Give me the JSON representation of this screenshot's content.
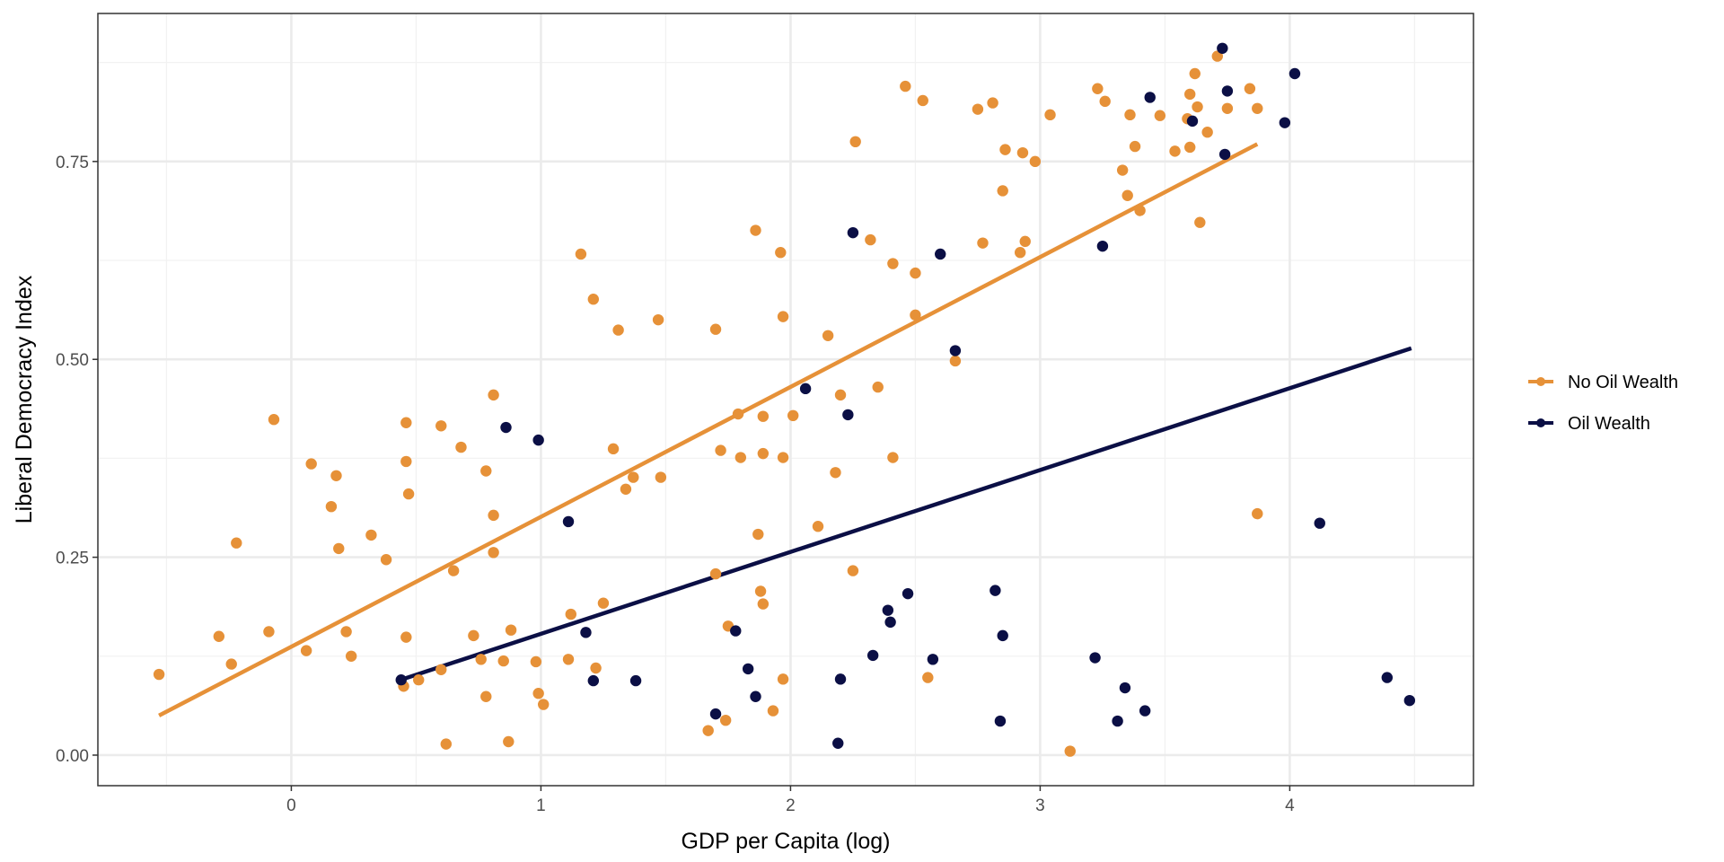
{
  "chart_data": {
    "type": "scatter",
    "title": "",
    "xlabel": "GDP per Capita (log)",
    "ylabel": "Liberal Democracy Index",
    "xlim": [
      -0.775,
      4.736
    ],
    "ylim": [
      -0.0386,
      0.937
    ],
    "x_ticks": [
      0,
      1,
      2,
      3,
      4
    ],
    "x_tick_labels": [
      "0",
      "1",
      "2",
      "3",
      "4"
    ],
    "x_minor_ticks": [
      -0.5,
      0.5,
      1.5,
      2.5,
      3.5,
      4.5
    ],
    "y_ticks": [
      0.0,
      0.25,
      0.5,
      0.75
    ],
    "y_tick_labels": [
      "0.00",
      "0.25",
      "0.50",
      "0.75"
    ],
    "y_minor_ticks": [
      0.125,
      0.375,
      0.625,
      0.875
    ],
    "grid": true,
    "legend_position": "right",
    "series": [
      {
        "name": "No Oil Wealth",
        "color": "#E69138",
        "fit_line": {
          "x": [
            -0.53,
            3.87
          ],
          "y": [
            0.05,
            0.772
          ]
        },
        "points": [
          [
            -0.53,
            0.102
          ],
          [
            -0.29,
            0.15
          ],
          [
            -0.24,
            0.115
          ],
          [
            -0.22,
            0.268
          ],
          [
            -0.09,
            0.156
          ],
          [
            -0.07,
            0.424
          ],
          [
            0.06,
            0.132
          ],
          [
            0.08,
            0.368
          ],
          [
            0.16,
            0.314
          ],
          [
            0.18,
            0.353
          ],
          [
            0.19,
            0.261
          ],
          [
            0.22,
            0.156
          ],
          [
            0.24,
            0.125
          ],
          [
            0.32,
            0.278
          ],
          [
            0.38,
            0.247
          ],
          [
            0.45,
            0.087
          ],
          [
            0.46,
            0.149
          ],
          [
            0.46,
            0.42
          ],
          [
            0.46,
            0.371
          ],
          [
            0.47,
            0.33
          ],
          [
            0.51,
            0.095
          ],
          [
            0.6,
            0.108
          ],
          [
            0.6,
            0.416
          ],
          [
            0.62,
            0.014
          ],
          [
            0.65,
            0.233
          ],
          [
            0.68,
            0.389
          ],
          [
            0.73,
            0.151
          ],
          [
            0.78,
            0.359
          ],
          [
            0.76,
            0.121
          ],
          [
            0.78,
            0.074
          ],
          [
            0.81,
            0.455
          ],
          [
            0.81,
            0.303
          ],
          [
            0.81,
            0.256
          ],
          [
            1.16,
            0.633
          ],
          [
            0.85,
            0.119
          ],
          [
            0.87,
            0.017
          ],
          [
            0.88,
            0.158
          ],
          [
            0.98,
            0.118
          ],
          [
            0.99,
            0.078
          ],
          [
            1.01,
            0.064
          ],
          [
            1.11,
            0.121
          ],
          [
            1.12,
            0.178
          ],
          [
            1.21,
            0.576
          ],
          [
            1.22,
            0.11
          ],
          [
            1.25,
            0.192
          ],
          [
            1.31,
            0.537
          ],
          [
            1.29,
            0.387
          ],
          [
            1.37,
            0.351
          ],
          [
            1.48,
            0.351
          ],
          [
            1.47,
            0.55
          ],
          [
            1.34,
            0.336
          ],
          [
            1.67,
            0.031
          ],
          [
            1.7,
            0.229
          ],
          [
            1.7,
            0.538
          ],
          [
            1.72,
            0.385
          ],
          [
            1.74,
            0.044
          ],
          [
            1.75,
            0.163
          ],
          [
            1.79,
            0.431
          ],
          [
            1.8,
            0.376
          ],
          [
            1.86,
            0.663
          ],
          [
            1.87,
            0.279
          ],
          [
            1.88,
            0.207
          ],
          [
            1.89,
            0.191
          ],
          [
            1.89,
            0.381
          ],
          [
            1.89,
            0.428
          ],
          [
            1.93,
            0.056
          ],
          [
            1.96,
            0.635
          ],
          [
            1.97,
            0.554
          ],
          [
            1.97,
            0.096
          ],
          [
            1.97,
            0.376
          ],
          [
            2.01,
            0.429
          ],
          [
            2.11,
            0.289
          ],
          [
            2.15,
            0.53
          ],
          [
            2.18,
            0.357
          ],
          [
            2.2,
            0.455
          ],
          [
            2.25,
            0.233
          ],
          [
            2.26,
            0.775
          ],
          [
            2.32,
            0.651
          ],
          [
            2.35,
            0.465
          ],
          [
            2.41,
            0.621
          ],
          [
            2.41,
            0.376
          ],
          [
            2.46,
            0.845
          ],
          [
            2.5,
            0.609
          ],
          [
            2.5,
            0.556
          ],
          [
            2.53,
            0.827
          ],
          [
            2.55,
            0.098
          ],
          [
            2.66,
            0.498
          ],
          [
            2.75,
            0.816
          ],
          [
            2.77,
            0.647
          ],
          [
            2.81,
            0.824
          ],
          [
            2.85,
            0.713
          ],
          [
            2.86,
            0.765
          ],
          [
            2.92,
            0.635
          ],
          [
            2.93,
            0.761
          ],
          [
            2.94,
            0.649
          ],
          [
            2.98,
            0.75
          ],
          [
            3.04,
            0.809
          ],
          [
            3.12,
            0.005
          ],
          [
            3.23,
            0.842
          ],
          [
            3.26,
            0.826
          ],
          [
            3.33,
            0.739
          ],
          [
            3.35,
            0.707
          ],
          [
            3.36,
            0.809
          ],
          [
            3.38,
            0.769
          ],
          [
            3.4,
            0.688
          ],
          [
            3.48,
            0.808
          ],
          [
            3.54,
            0.763
          ],
          [
            3.59,
            0.804
          ],
          [
            3.6,
            0.768
          ],
          [
            3.6,
            0.835
          ],
          [
            3.62,
            0.861
          ],
          [
            3.63,
            0.819
          ],
          [
            3.64,
            0.673
          ],
          [
            3.67,
            0.787
          ],
          [
            3.71,
            0.883
          ],
          [
            3.75,
            0.817
          ],
          [
            3.87,
            0.305
          ],
          [
            3.84,
            0.842
          ],
          [
            3.87,
            0.817
          ]
        ]
      },
      {
        "name": "Oil Wealth",
        "color": "#0B0F45",
        "fit_line": {
          "x": [
            0.437,
            4.487
          ],
          "y": [
            0.095,
            0.514
          ]
        },
        "points": [
          [
            0.44,
            0.095
          ],
          [
            0.86,
            0.414
          ],
          [
            0.99,
            0.398
          ],
          [
            1.11,
            0.295
          ],
          [
            1.18,
            0.155
          ],
          [
            1.21,
            0.094
          ],
          [
            1.38,
            0.094
          ],
          [
            1.7,
            0.052
          ],
          [
            1.78,
            0.157
          ],
          [
            1.83,
            0.109
          ],
          [
            1.86,
            0.074
          ],
          [
            2.06,
            0.463
          ],
          [
            2.19,
            0.015
          ],
          [
            2.2,
            0.096
          ],
          [
            2.23,
            0.43
          ],
          [
            2.25,
            0.66
          ],
          [
            2.33,
            0.126
          ],
          [
            2.39,
            0.183
          ],
          [
            2.4,
            0.168
          ],
          [
            2.47,
            0.204
          ],
          [
            2.57,
            0.121
          ],
          [
            2.6,
            0.633
          ],
          [
            2.66,
            0.511
          ],
          [
            2.82,
            0.208
          ],
          [
            2.84,
            0.043
          ],
          [
            2.85,
            0.151
          ],
          [
            3.22,
            0.123
          ],
          [
            3.25,
            0.643
          ],
          [
            3.31,
            0.043
          ],
          [
            3.34,
            0.085
          ],
          [
            3.42,
            0.056
          ],
          [
            3.44,
            0.831
          ],
          [
            3.61,
            0.801
          ],
          [
            3.73,
            0.893
          ],
          [
            3.74,
            0.759
          ],
          [
            3.75,
            0.839
          ],
          [
            3.98,
            0.799
          ],
          [
            4.02,
            0.861
          ],
          [
            4.12,
            0.293
          ],
          [
            4.39,
            0.098
          ],
          [
            4.48,
            0.069
          ]
        ]
      }
    ]
  },
  "colors": {
    "panel_border": "#333333",
    "grid_major": "#EBEBEB",
    "grid_minor": "#F2F2F2"
  }
}
